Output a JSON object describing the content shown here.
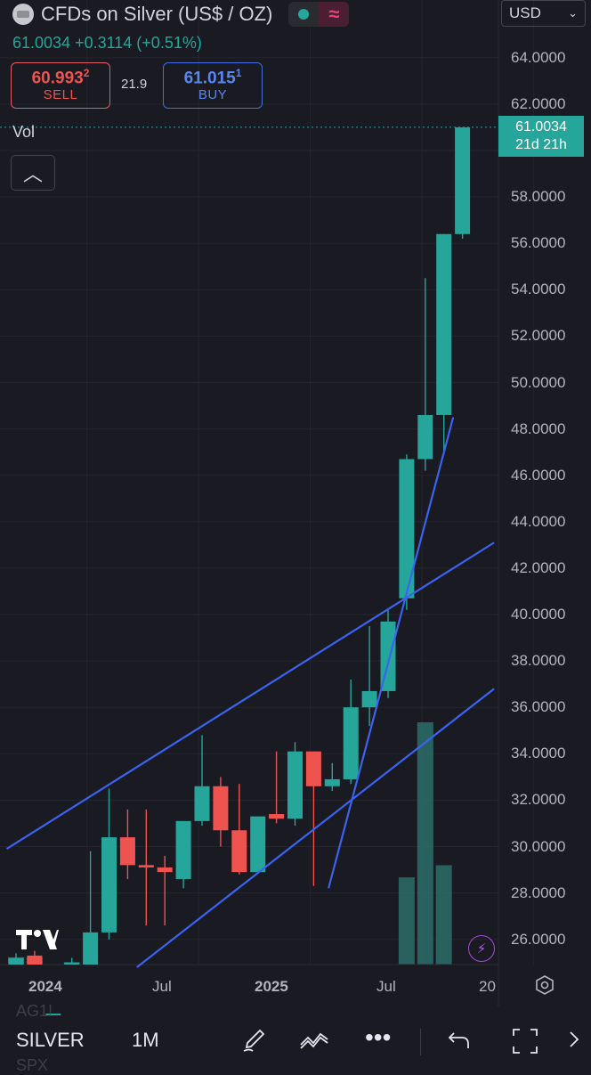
{
  "header": {
    "title": "CFDs on Silver (US$ / OZ)",
    "quote": "61.0034 +0.3114 (+0.51%)",
    "sell_price": "60.993",
    "sell_price_sup": "2",
    "sell_label": "SELL",
    "spread": "21.9",
    "buy_price": "61.015",
    "buy_price_sup": "1",
    "buy_label": "BUY",
    "currency": "USD",
    "currency_icon": "chevron-down-icon"
  },
  "indicator": {
    "vol_label": "Vol",
    "collapse_icon": "chevron-up-icon"
  },
  "price_tag": {
    "price": "61.0034",
    "countdown": "21d 21h"
  },
  "y_labels": [
    "64.0000",
    "62.0000",
    "58.0000",
    "56.0000",
    "54.0000",
    "52.0000",
    "50.0000",
    "48.0000",
    "46.0000",
    "44.0000",
    "42.0000",
    "40.0000",
    "38.0000",
    "36.0000",
    "34.0000",
    "32.0000",
    "30.0000",
    "28.0000",
    "26.0000"
  ],
  "x_labels": [
    "2024",
    "Jul",
    "2025",
    "Jul",
    "20"
  ],
  "ghost": [
    "AG1!",
    "SPX"
  ],
  "toolbar": {
    "symbol": "SILVER",
    "interval": "1M"
  },
  "colors": {
    "up": "#26a69a",
    "down": "#ef5350",
    "trendline": "#3b63f0",
    "background": "#1a1a22"
  },
  "chart_data": {
    "type": "candlestick",
    "timeframe": "1M",
    "x_labels": [
      "2024",
      "Jul",
      "2025",
      "Jul",
      "20"
    ],
    "ylim": [
      25,
      65
    ],
    "candles": [
      {
        "o": 24.2,
        "h": 25.4,
        "l": 22.0,
        "c": 25.2
      },
      {
        "o": 25.3,
        "h": 25.5,
        "l": 22.5,
        "c": 24.8
      },
      {
        "o": 22.6,
        "h": 23.0,
        "l": 21.5,
        "c": 22.8
      },
      {
        "o": 22.8,
        "h": 25.2,
        "l": 22.4,
        "c": 25.0
      },
      {
        "o": 24.9,
        "h": 29.8,
        "l": 24.2,
        "c": 26.3
      },
      {
        "o": 26.3,
        "h": 32.5,
        "l": 26.0,
        "c": 30.4
      },
      {
        "o": 30.4,
        "h": 31.6,
        "l": 28.6,
        "c": 29.2
      },
      {
        "o": 29.2,
        "h": 31.6,
        "l": 26.6,
        "c": 29.1
      },
      {
        "o": 29.1,
        "h": 29.6,
        "l": 26.6,
        "c": 28.9
      },
      {
        "o": 28.6,
        "h": 30.8,
        "l": 28.2,
        "c": 31.1
      },
      {
        "o": 31.1,
        "h": 34.8,
        "l": 30.9,
        "c": 32.6
      },
      {
        "o": 32.6,
        "h": 33.0,
        "l": 30.0,
        "c": 30.7
      },
      {
        "o": 30.7,
        "h": 32.7,
        "l": 28.8,
        "c": 28.9
      },
      {
        "o": 28.9,
        "h": 31.3,
        "l": 28.9,
        "c": 31.3
      },
      {
        "o": 31.4,
        "h": 34.1,
        "l": 31.0,
        "c": 31.2
      },
      {
        "o": 31.2,
        "h": 34.5,
        "l": 30.9,
        "c": 34.1
      },
      {
        "o": 34.1,
        "h": 34.1,
        "l": 28.3,
        "c": 32.6
      },
      {
        "o": 32.6,
        "h": 33.6,
        "l": 32.4,
        "c": 32.9
      },
      {
        "o": 32.9,
        "h": 37.2,
        "l": 32.7,
        "c": 36.0
      },
      {
        "o": 36.0,
        "h": 39.5,
        "l": 35.2,
        "c": 36.7
      },
      {
        "o": 36.7,
        "h": 40.2,
        "l": 36.4,
        "c": 39.7
      },
      {
        "o": 40.7,
        "h": 46.9,
        "l": 40.2,
        "c": 46.7
      },
      {
        "o": 46.7,
        "h": 54.5,
        "l": 46.2,
        "c": 48.6
      },
      {
        "o": 48.6,
        "h": 56.4,
        "l": 46.9,
        "c": 56.4
      },
      {
        "o": 56.4,
        "h": 61.0,
        "l": 56.2,
        "c": 61.0
      }
    ],
    "volume": [
      0.03,
      0.03,
      0,
      0.01,
      0,
      0,
      0,
      0,
      0,
      0,
      0,
      0,
      0,
      0,
      0,
      0,
      0,
      0,
      0,
      0,
      0,
      0.36,
      1.0,
      0.41,
      0
    ],
    "trendlines": [
      {
        "x1": -0.5,
        "y1": 29.9,
        "x2": 25.7,
        "y2": 43.1
      },
      {
        "x1": 6.5,
        "y1": 24.8,
        "x2": 25.7,
        "y2": 36.8
      },
      {
        "x1": 16.8,
        "y1": 28.2,
        "x2": 23.5,
        "y2": 48.5
      }
    ],
    "last_price": 61.0034
  }
}
